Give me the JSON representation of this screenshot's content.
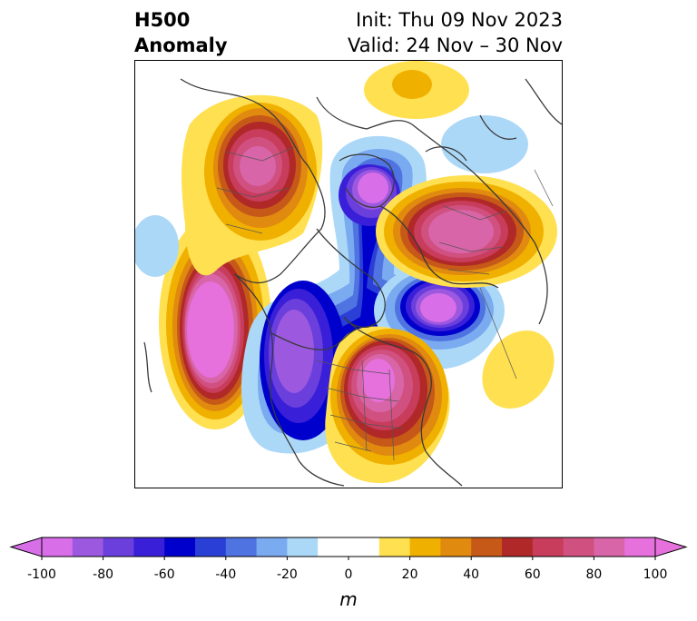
{
  "title": {
    "left_line1": "H500",
    "left_line2": "Anomaly",
    "init": "Init: Thu 09 Nov 2023",
    "valid": "Valid: 24 Nov – 30 Nov"
  },
  "colorbar": {
    "unit": "m",
    "ticks": [
      "-100",
      "-80",
      "-60",
      "-40",
      "-20",
      "0",
      "20",
      "40",
      "60",
      "80",
      "100"
    ],
    "levels": [
      -100,
      -90,
      -80,
      -70,
      -60,
      -50,
      -40,
      -30,
      -20,
      -10,
      10,
      20,
      30,
      40,
      50,
      60,
      70,
      80,
      90,
      100
    ],
    "colors": [
      "#d86ee8",
      "#9d58e0",
      "#6a3fdc",
      "#3a1fd8",
      "#0000cc",
      "#2a3fd6",
      "#4f73e0",
      "#7aaaf0",
      "#acd8f8",
      "#ffffff",
      "#ffe050",
      "#f0b000",
      "#e08a10",
      "#c65818",
      "#b02828",
      "#c83c5c",
      "#d05080",
      "#d865a8",
      "#e670dc"
    ],
    "extend_min_color": "#d86ee8",
    "extend_max_color": "#e670dc"
  },
  "anomalies": [
    {
      "id": "alaska-ridge",
      "sign": "positive",
      "peak_m": 100
    },
    {
      "id": "nw-canada-trough",
      "sign": "negative",
      "peak_m": -100
    },
    {
      "id": "eastern-us-ridge",
      "sign": "positive",
      "peak_m": 100
    },
    {
      "id": "kara-sea-trough",
      "sign": "negative",
      "peak_m": -90
    },
    {
      "id": "siberia-ridge",
      "sign": "positive",
      "peak_m": 100
    },
    {
      "id": "europe-ridge",
      "sign": "positive",
      "peak_m": 100
    },
    {
      "id": "north-atlantic-trough",
      "sign": "negative",
      "peak_m": -90
    }
  ]
}
